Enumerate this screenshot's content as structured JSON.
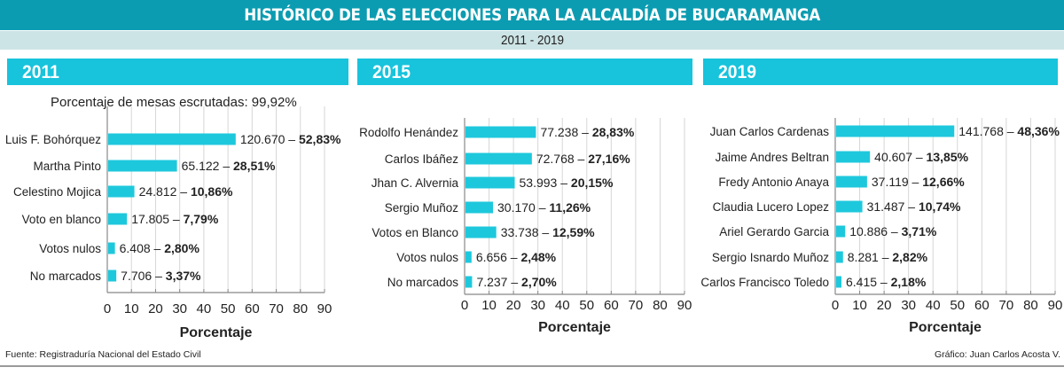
{
  "header": {
    "title": "HISTÓRICO DE LAS ELECCIONES PARA LA ALCALDÍA DE BUCARAMANGA",
    "subtitle": "2011 - 2019"
  },
  "colors": {
    "title_bg": "#0c9cb1",
    "subtitle_bg": "#cde4e6",
    "year_bar": "#18c3dc",
    "bar": "#1ec8dc"
  },
  "note_2011": "Porcentaje de mesas escrutadas: 99,92%",
  "footer": {
    "source": "Fuente: Registraduría Nacional del Estado Civil",
    "credit": "Gráfico: Juan Carlos Acosta V."
  },
  "chart_data": [
    {
      "type": "bar",
      "orientation": "horizontal",
      "title": "2011",
      "xlabel": "Porcentaje",
      "xlim": [
        0,
        90
      ],
      "xticks": [
        "0",
        "10",
        "20",
        "30",
        "40",
        "50",
        "60",
        "70",
        "80",
        "90"
      ],
      "grid": true,
      "categories": [
        "Luis F. Bohórquez",
        "Martha Pinto",
        "Celestino Mojica",
        "Voto en blanco",
        "Votos nulos",
        "No marcados"
      ],
      "values": [
        52.83,
        28.51,
        10.86,
        7.79,
        2.8,
        3.37
      ],
      "votes": [
        "120.670",
        "65.122",
        "24.812",
        "17.805",
        "6.408",
        "7.706"
      ],
      "pct_labels": [
        "52,83%",
        "28,51%",
        "10,86%",
        "7,79%",
        "2,80%",
        "3,37%"
      ]
    },
    {
      "type": "bar",
      "orientation": "horizontal",
      "title": "2015",
      "xlabel": "Porcentaje",
      "xlim": [
        0,
        90
      ],
      "xticks": [
        "0",
        "10",
        "20",
        "30",
        "40",
        "50",
        "60",
        "70",
        "80",
        "90"
      ],
      "grid": true,
      "categories": [
        "Rodolfo Henández",
        "Carlos Ibáñez",
        "Jhan C. Alvernia",
        "Sergio Muñoz",
        "Votos en Blanco",
        "Votos nulos",
        "No marcados"
      ],
      "values": [
        28.83,
        27.16,
        20.15,
        11.26,
        12.59,
        2.48,
        2.7
      ],
      "votes": [
        "77.238",
        "72.768",
        "53.993",
        "30.170",
        "33.738",
        "6.656",
        "7.237"
      ],
      "pct_labels": [
        "28,83%",
        "27,16%",
        "20,15%",
        "11,26%",
        "12,59%",
        "2,48%",
        "2,70%"
      ]
    },
    {
      "type": "bar",
      "orientation": "horizontal",
      "title": "2019",
      "xlabel": "Porcentaje",
      "xlim": [
        0,
        90
      ],
      "xticks": [
        "0",
        "10",
        "20",
        "30",
        "40",
        "50",
        "60",
        "70",
        "80",
        "90"
      ],
      "grid": true,
      "categories": [
        "Juan Carlos Cardenas",
        "Jaime Andres Beltran",
        "Fredy Antonio Anaya",
        "Claudia Lucero Lopez",
        "Ariel Gerardo Garcia",
        "Sergio Isnardo Muñoz",
        "Carlos Francisco Toledo"
      ],
      "values": [
        48.36,
        13.85,
        12.66,
        10.74,
        3.71,
        2.82,
        2.18
      ],
      "votes": [
        "141.768",
        "40.607",
        "37.119",
        "31.487",
        "10.886",
        "8.281",
        "6.415"
      ],
      "pct_labels": [
        "48,36%",
        "13,85%",
        "12,66%",
        "10,74%",
        "3,71%",
        "2,82%",
        "2,18%"
      ]
    }
  ]
}
